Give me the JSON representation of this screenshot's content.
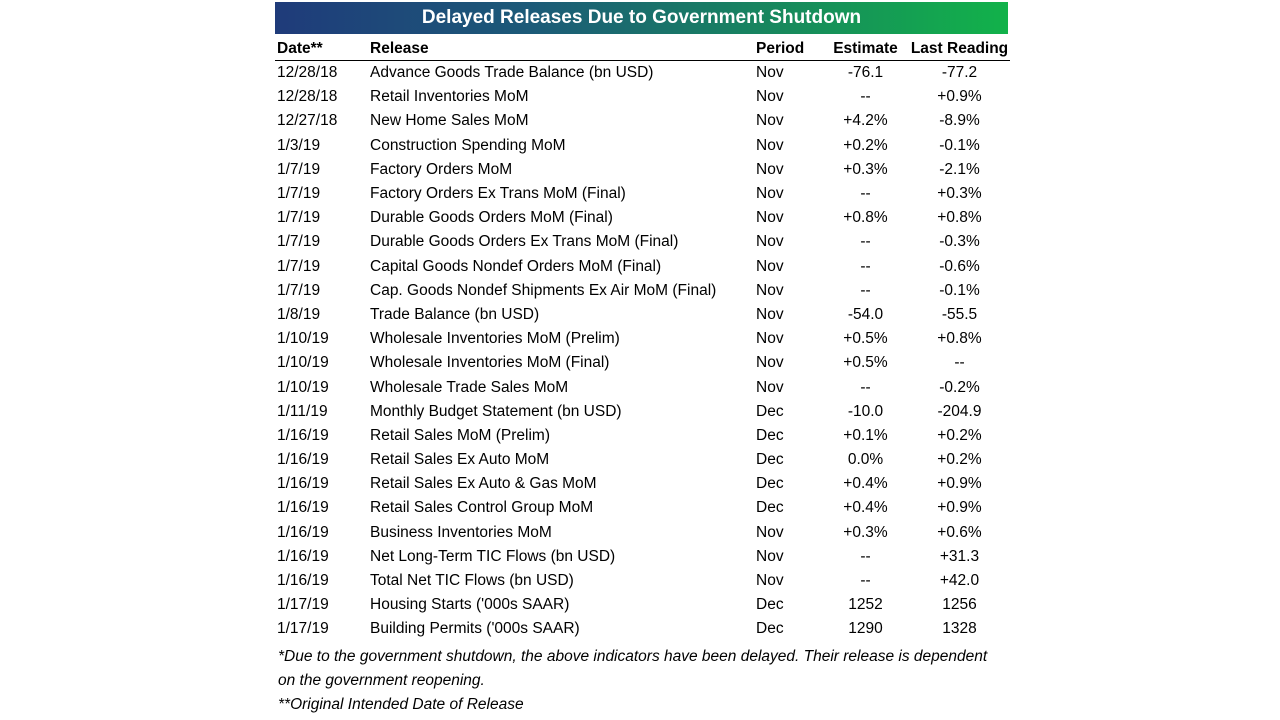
{
  "title": "Delayed Releases Due to Government Shutdown",
  "columns": {
    "date": "Date**",
    "release": "Release",
    "period": "Period",
    "estimate": "Estimate",
    "last": "Last Reading"
  },
  "rows": [
    {
      "date": "12/28/18",
      "release": "Advance Goods Trade Balance (bn USD)",
      "period": "Nov",
      "estimate": "-76.1",
      "last": "-77.2"
    },
    {
      "date": "12/28/18",
      "release": "Retail Inventories MoM",
      "period": "Nov",
      "estimate": "--",
      "last": "+0.9%"
    },
    {
      "date": "12/27/18",
      "release": "New Home Sales MoM",
      "period": "Nov",
      "estimate": "+4.2%",
      "last": "-8.9%"
    },
    {
      "date": "1/3/19",
      "release": "Construction Spending MoM",
      "period": "Nov",
      "estimate": "+0.2%",
      "last": "-0.1%"
    },
    {
      "date": "1/7/19",
      "release": "Factory Orders MoM",
      "period": "Nov",
      "estimate": "+0.3%",
      "last": "-2.1%"
    },
    {
      "date": "1/7/19",
      "release": "Factory Orders Ex Trans MoM (Final)",
      "period": "Nov",
      "estimate": "--",
      "last": "+0.3%"
    },
    {
      "date": "1/7/19",
      "release": "Durable Goods Orders MoM (Final)",
      "period": "Nov",
      "estimate": "+0.8%",
      "last": "+0.8%"
    },
    {
      "date": "1/7/19",
      "release": "Durable Goods Orders Ex Trans MoM (Final)",
      "period": "Nov",
      "estimate": "--",
      "last": "-0.3%"
    },
    {
      "date": "1/7/19",
      "release": "Capital Goods Nondef Orders MoM (Final)",
      "period": "Nov",
      "estimate": "--",
      "last": "-0.6%"
    },
    {
      "date": "1/7/19",
      "release": "Cap. Goods Nondef Shipments Ex Air MoM (Final)",
      "period": "Nov",
      "estimate": "--",
      "last": "-0.1%"
    },
    {
      "date": "1/8/19",
      "release": "Trade Balance (bn USD)",
      "period": "Nov",
      "estimate": "-54.0",
      "last": "-55.5"
    },
    {
      "date": "1/10/19",
      "release": "Wholesale Inventories MoM (Prelim)",
      "period": "Nov",
      "estimate": "+0.5%",
      "last": "+0.8%"
    },
    {
      "date": "1/10/19",
      "release": "Wholesale Inventories MoM (Final)",
      "period": "Nov",
      "estimate": "+0.5%",
      "last": "--"
    },
    {
      "date": "1/10/19",
      "release": "Wholesale Trade Sales MoM",
      "period": "Nov",
      "estimate": "--",
      "last": "-0.2%"
    },
    {
      "date": "1/11/19",
      "release": "Monthly Budget Statement (bn USD)",
      "period": "Dec",
      "estimate": "-10.0",
      "last": "-204.9"
    },
    {
      "date": "1/16/19",
      "release": "Retail Sales MoM (Prelim)",
      "period": "Dec",
      "estimate": "+0.1%",
      "last": "+0.2%"
    },
    {
      "date": "1/16/19",
      "release": "Retail Sales Ex Auto MoM",
      "period": "Dec",
      "estimate": "0.0%",
      "last": "+0.2%"
    },
    {
      "date": "1/16/19",
      "release": "Retail Sales Ex Auto & Gas MoM",
      "period": "Dec",
      "estimate": "+0.4%",
      "last": "+0.9%"
    },
    {
      "date": "1/16/19",
      "release": "Retail Sales Control Group MoM",
      "period": "Dec",
      "estimate": "+0.4%",
      "last": "+0.9%"
    },
    {
      "date": "1/16/19",
      "release": "Business Inventories MoM",
      "period": "Nov",
      "estimate": "+0.3%",
      "last": "+0.6%"
    },
    {
      "date": "1/16/19",
      "release": "Net Long-Term TIC Flows (bn USD)",
      "period": "Nov",
      "estimate": "--",
      "last": "+31.3"
    },
    {
      "date": "1/16/19",
      "release": "Total Net TIC Flows (bn USD)",
      "period": "Nov",
      "estimate": "--",
      "last": "+42.0"
    },
    {
      "date": "1/17/19",
      "release": "Housing Starts ('000s SAAR)",
      "period": "Dec",
      "estimate": "1252",
      "last": "1256"
    },
    {
      "date": "1/17/19",
      "release": "Building Permits ('000s SAAR)",
      "period": "Dec",
      "estimate": "1290",
      "last": "1328"
    }
  ],
  "footnotes": {
    "note1": "*Due to the government shutdown, the above indicators have been delayed. Their release is dependent on the government reopening.",
    "note2": "**Original Intended Date of Release"
  },
  "colors": {
    "title_gradient_start": "#1f3b7a",
    "title_gradient_end": "#12b24a",
    "title_text": "#ffffff"
  }
}
